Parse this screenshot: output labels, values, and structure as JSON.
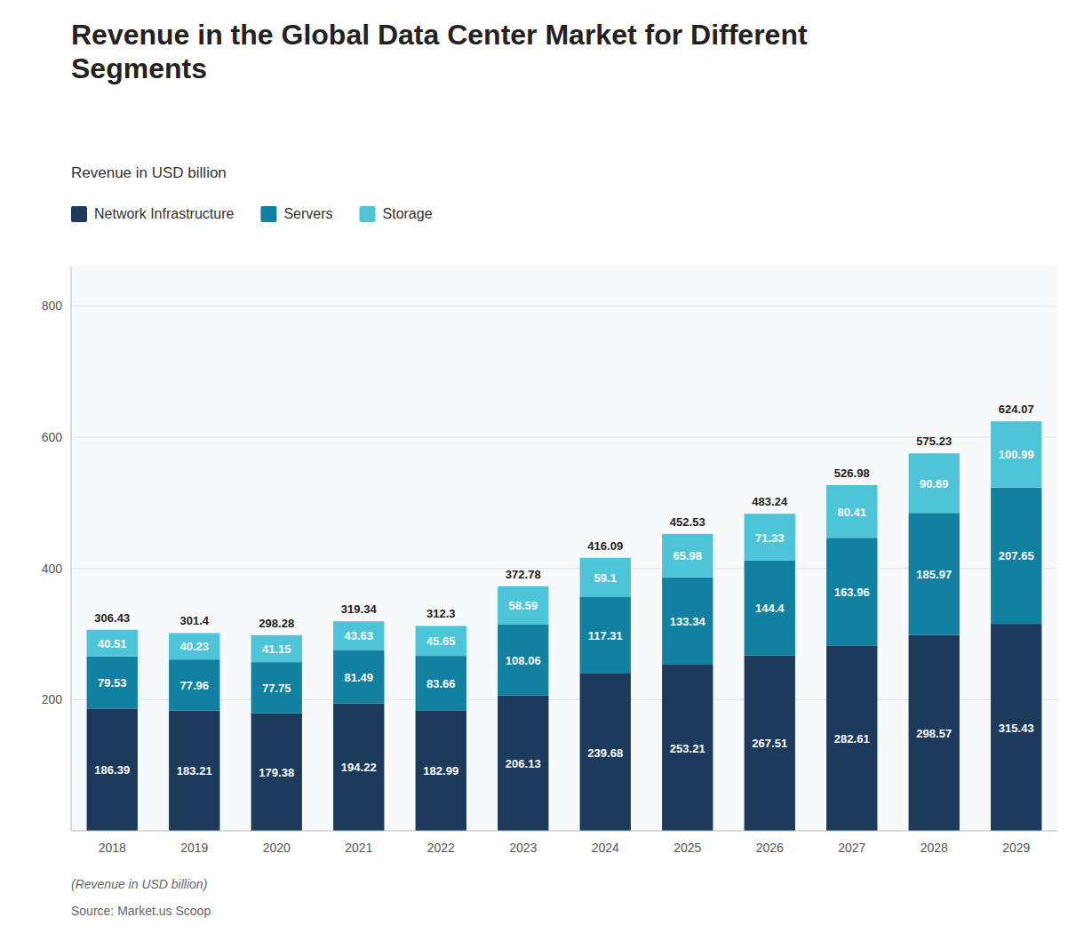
{
  "chart_data": {
    "type": "bar",
    "stacked": true,
    "title": "Revenue in the Global Data Center Market for Different\nSegments",
    "subtitle": "Revenue in USD billion",
    "annotations": [
      "(Revenue in USD billion)",
      "Source: Market.us Scoop"
    ],
    "categories": [
      "2018",
      "2019",
      "2020",
      "2021",
      "2022",
      "2023",
      "2024",
      "2025",
      "2026",
      "2027",
      "2028",
      "2029"
    ],
    "series": [
      {
        "name": "Network Infrastructure",
        "color": "#1b3a5c",
        "values": [
          186.39,
          183.21,
          179.38,
          194.22,
          182.99,
          206.13,
          239.68,
          253.21,
          267.51,
          282.61,
          298.57,
          315.43
        ]
      },
      {
        "name": "Servers",
        "color": "#1280a0",
        "values": [
          79.53,
          77.96,
          77.75,
          81.49,
          83.66,
          108.06,
          117.31,
          133.34,
          144.4,
          163.96,
          185.97,
          207.65
        ]
      },
      {
        "name": "Storage",
        "color": "#4ec4d8",
        "values": [
          40.51,
          40.23,
          41.15,
          43.63,
          45.65,
          58.59,
          59.1,
          65.98,
          71.33,
          80.41,
          90.69,
          100.99
        ]
      }
    ],
    "totals": [
      306.43,
      301.4,
      298.28,
      319.34,
      312.3,
      372.78,
      416.09,
      452.53,
      483.24,
      526.98,
      575.23,
      624.07
    ],
    "ylim": [
      0,
      860
    ],
    "yticks": [
      200,
      400,
      600,
      800
    ],
    "grid": true,
    "legend": "top",
    "data_labels": true
  }
}
